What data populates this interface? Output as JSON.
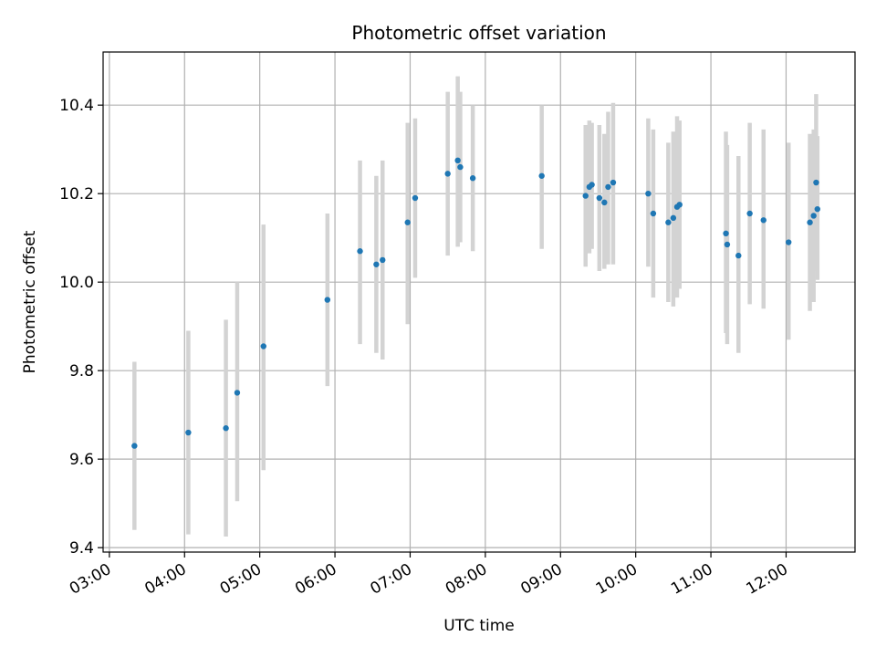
{
  "chart_data": {
    "type": "scatter",
    "title": "Photometric offset variation",
    "xlabel": "UTC time",
    "ylabel": "Photometric offset",
    "xlim": [
      "02:55",
      "12:55"
    ],
    "ylim": [
      9.39,
      10.52
    ],
    "xticks": [
      "03:00",
      "04:00",
      "05:00",
      "06:00",
      "07:00",
      "08:00",
      "09:00",
      "10:00",
      "11:00",
      "12:00"
    ],
    "yticks": [
      9.4,
      9.6,
      9.8,
      10.0,
      10.2,
      10.4
    ],
    "ytick_labels": [
      "9.4",
      "9.6",
      "9.8",
      "10.0",
      "10.2",
      "10.4"
    ],
    "grid": true,
    "colors": {
      "point": "#1f77b4",
      "errorbar": "#d3d3d3",
      "grid": "#b0b0b0"
    },
    "series": [
      {
        "x": [
          "03:20",
          "04:03",
          "04:33",
          "04:42",
          "05:03",
          "05:54",
          "06:20",
          "06:33",
          "06:38",
          "06:58",
          "07:04",
          "07:30",
          "07:38",
          "07:40",
          "07:50",
          "08:45",
          "09:20",
          "09:23",
          "09:25",
          "09:31",
          "09:35",
          "09:38",
          "09:42",
          "10:10",
          "10:14",
          "10:26",
          "10:30",
          "10:33",
          "10:35",
          "11:12",
          "11:13",
          "11:22",
          "11:31",
          "11:42",
          "12:02",
          "12:19",
          "12:22",
          "12:24",
          "12:25"
        ],
        "y": [
          9.63,
          9.66,
          9.67,
          9.75,
          9.855,
          9.96,
          10.07,
          10.04,
          10.05,
          10.135,
          10.19,
          10.245,
          10.275,
          10.26,
          10.235,
          10.24,
          10.195,
          10.215,
          10.22,
          10.19,
          10.18,
          10.215,
          10.225,
          10.2,
          10.155,
          10.135,
          10.145,
          10.17,
          10.175,
          10.11,
          10.085,
          10.06,
          10.155,
          10.14,
          10.09,
          10.135,
          10.15,
          10.225,
          10.165
        ],
        "yerr_low": [
          9.44,
          9.43,
          9.425,
          9.505,
          9.575,
          9.765,
          9.86,
          9.84,
          9.825,
          9.905,
          10.01,
          10.06,
          10.08,
          10.09,
          10.07,
          10.075,
          10.035,
          10.065,
          10.075,
          10.025,
          10.03,
          10.04,
          10.04,
          10.035,
          9.965,
          9.955,
          9.945,
          9.965,
          9.985,
          9.885,
          9.86,
          9.84,
          9.95,
          9.94,
          9.87,
          9.935,
          9.955,
          10.025,
          10.005
        ],
        "yerr_high": [
          9.82,
          9.89,
          9.915,
          10.0,
          10.13,
          10.155,
          10.275,
          10.24,
          10.275,
          10.36,
          10.37,
          10.43,
          10.465,
          10.43,
          10.4,
          10.4,
          10.355,
          10.365,
          10.36,
          10.355,
          10.335,
          10.385,
          10.405,
          10.37,
          10.345,
          10.315,
          10.34,
          10.375,
          10.365,
          10.34,
          10.31,
          10.285,
          10.36,
          10.345,
          10.315,
          10.335,
          10.345,
          10.425,
          10.33
        ]
      }
    ]
  }
}
